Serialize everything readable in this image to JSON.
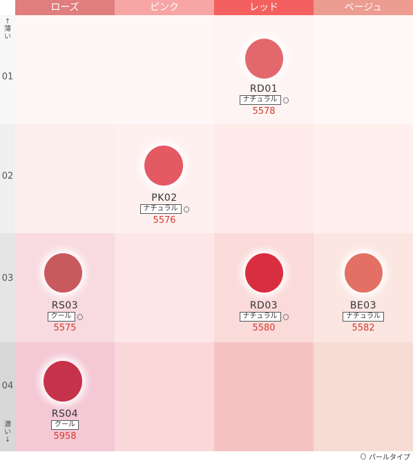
{
  "header": {
    "columns": [
      {
        "label": "ローズ",
        "color": "#e07d7d"
      },
      {
        "label": "ピンク",
        "color": "#f7a5a5"
      },
      {
        "label": "レッド",
        "color": "#f4605f"
      },
      {
        "label": "ベージュ",
        "color": "#ec9c90"
      }
    ]
  },
  "side": {
    "top_label": "↑薄い",
    "bottom_label": "濃い↓",
    "rows": [
      "01",
      "02",
      "03",
      "04"
    ]
  },
  "items": [
    {
      "code": "RD01",
      "tag": "ナチュラル",
      "pearl": true,
      "number": "5578",
      "color": "#e3686c"
    },
    {
      "code": "PK02",
      "tag": "ナチュラル",
      "pearl": true,
      "number": "5576",
      "color": "#e45a63"
    },
    {
      "code": "RS03",
      "tag": "クール",
      "pearl": true,
      "number": "5575",
      "color": "#c85a5e"
    },
    {
      "code": "RD03",
      "tag": "ナチュラル",
      "pearl": true,
      "number": "5580",
      "color": "#d92e3f"
    },
    {
      "code": "BE03",
      "tag": "ナチュラル",
      "pearl": false,
      "number": "5582",
      "color": "#e27065"
    },
    {
      "code": "RS04",
      "tag": "クール",
      "pearl": false,
      "number": "5958",
      "color": "#c63249"
    }
  ],
  "legend": {
    "label": "パールタイプ"
  }
}
